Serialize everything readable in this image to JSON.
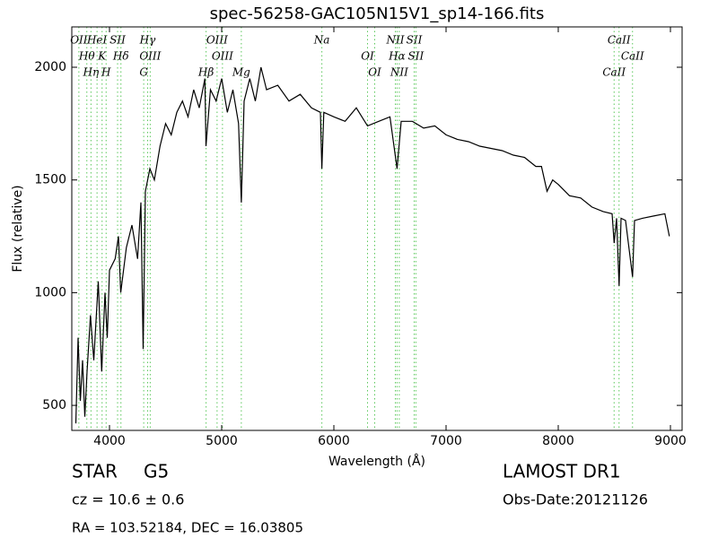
{
  "chart_data": {
    "type": "line",
    "title": "spec-56258-GAC105N15V1_sp14-166.fits",
    "x_label": "Wavelength (Å)",
    "y_label": "Flux (relative)",
    "xlim": [
      3664,
      9104
    ],
    "ylim": [
      389,
      2179
    ],
    "xticks": [
      4000,
      5000,
      6000,
      7000,
      8000,
      9000
    ],
    "yticks": [
      500,
      1000,
      1500,
      2000
    ],
    "series": [
      {
        "name": "spectrum",
        "color": "#000000",
        "x": [
          3700,
          3720,
          3740,
          3760,
          3780,
          3800,
          3830,
          3860,
          3900,
          3930,
          3960,
          3980,
          4000,
          4050,
          4080,
          4100,
          4150,
          4200,
          4250,
          4280,
          4300,
          4320,
          4360,
          4400,
          4450,
          4500,
          4550,
          4600,
          4650,
          4700,
          4750,
          4800,
          4850,
          4860,
          4900,
          4950,
          5000,
          5050,
          5100,
          5150,
          5175,
          5200,
          5250,
          5300,
          5350,
          5400,
          5500,
          5600,
          5700,
          5800,
          5880,
          5893,
          5910,
          6000,
          6100,
          6200,
          6300,
          6400,
          6500,
          6563,
          6600,
          6700,
          6800,
          6900,
          7000,
          7100,
          7200,
          7300,
          7400,
          7500,
          7600,
          7700,
          7800,
          7850,
          7900,
          7950,
          8000,
          8100,
          8200,
          8300,
          8400,
          8480,
          8498,
          8520,
          8542,
          8560,
          8600,
          8662,
          8680,
          8750,
          8850,
          8950,
          8990
        ],
        "values": [
          420,
          800,
          520,
          700,
          450,
          650,
          900,
          700,
          1050,
          650,
          1000,
          800,
          1100,
          1150,
          1250,
          1000,
          1200,
          1300,
          1150,
          1400,
          750,
          1450,
          1550,
          1500,
          1650,
          1750,
          1700,
          1800,
          1850,
          1780,
          1900,
          1820,
          1950,
          1650,
          1900,
          1850,
          1950,
          1800,
          1900,
          1750,
          1400,
          1850,
          1950,
          1850,
          2000,
          1900,
          1920,
          1850,
          1880,
          1820,
          1800,
          1550,
          1800,
          1780,
          1760,
          1820,
          1740,
          1760,
          1780,
          1550,
          1760,
          1760,
          1730,
          1740,
          1700,
          1680,
          1670,
          1650,
          1640,
          1630,
          1610,
          1600,
          1560,
          1560,
          1450,
          1500,
          1480,
          1430,
          1420,
          1380,
          1360,
          1350,
          1220,
          1330,
          1030,
          1330,
          1320,
          1070,
          1320,
          1330,
          1340,
          1350,
          1250
        ]
      }
    ],
    "line_markers": {
      "color": "#5cc85c",
      "wavelengths": [
        3727,
        3798,
        3835,
        3889,
        3934,
        3970,
        4072,
        4102,
        4305,
        4340,
        4363,
        4861,
        4959,
        5007,
        5175,
        5893,
        6300,
        6364,
        6548,
        6563,
        6583,
        6716,
        6731,
        8498,
        8542,
        8662
      ],
      "labels": [
        "OII",
        "Hθ",
        "Hη",
        "HeI",
        "K",
        "H",
        "SII",
        "Hδ",
        "G",
        "Hγ",
        "OIII",
        "Hβ",
        "OIII",
        "OIII",
        "Mg",
        "Na",
        "OI",
        "OI",
        "NII",
        "Hα",
        "NII",
        "SII",
        "SII",
        "CaII",
        "CaII",
        "CaII"
      ]
    },
    "class": "STAR",
    "subclass": "G5",
    "redshift": "cz = 10.6 ± 0.6",
    "coords": "RA = 103.52184, DEC = 16.03805",
    "survey": "LAMOST DR1",
    "obs_date": "Obs-Date:20121126"
  }
}
